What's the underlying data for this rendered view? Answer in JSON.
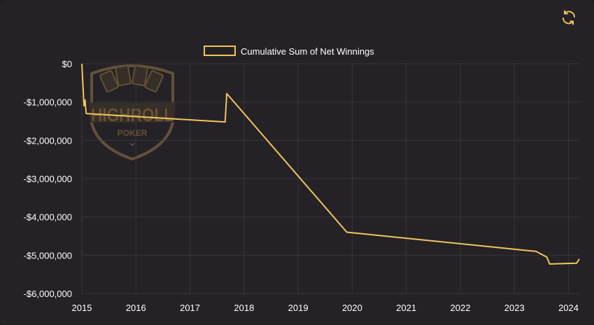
{
  "icons": {
    "refresh": "refresh-icon"
  },
  "colors": {
    "background": "#242226",
    "line": "#f2c55c",
    "grid": "#37353a",
    "text": "#ffffff",
    "logo": "#6e5a3c"
  },
  "logo": {
    "top_text": "HIGHROLL",
    "bottom_text": "POKER"
  },
  "chart_data": {
    "type": "line",
    "legend": {
      "position": "top-center",
      "entries": [
        "Cumulative Sum of Net Winnings"
      ]
    },
    "series": [
      {
        "name": "Cumulative Sum of Net Winnings",
        "points": [
          [
            2015.0,
            0
          ],
          [
            2015.04,
            -1100000
          ],
          [
            2015.06,
            -950000
          ],
          [
            2015.08,
            -1300000
          ],
          [
            2017.65,
            -1520000
          ],
          [
            2017.68,
            -780000
          ],
          [
            2019.9,
            -4400000
          ],
          [
            2023.4,
            -4900000
          ],
          [
            2023.6,
            -5050000
          ],
          [
            2023.65,
            -5230000
          ],
          [
            2024.15,
            -5210000
          ],
          [
            2024.2,
            -5100000
          ]
        ]
      }
    ],
    "x_ticks": [
      {
        "v": 2015,
        "label": "2015"
      },
      {
        "v": 2016,
        "label": "2016"
      },
      {
        "v": 2017,
        "label": "2017"
      },
      {
        "v": 2018,
        "label": "2018"
      },
      {
        "v": 2019,
        "label": "2019"
      },
      {
        "v": 2020,
        "label": "2020"
      },
      {
        "v": 2021,
        "label": "2021"
      },
      {
        "v": 2022,
        "label": "2022"
      },
      {
        "v": 2023,
        "label": "2023"
      },
      {
        "v": 2024,
        "label": "2024"
      }
    ],
    "y_ticks": [
      {
        "v": 0,
        "label": "$0"
      },
      {
        "v": -1000000,
        "label": "-$1,000,000"
      },
      {
        "v": -2000000,
        "label": "-$2,000,000"
      },
      {
        "v": -3000000,
        "label": "-$3,000,000"
      },
      {
        "v": -4000000,
        "label": "-$4,000,000"
      },
      {
        "v": -5000000,
        "label": "-$5,000,000"
      },
      {
        "v": -6000000,
        "label": "-$6,000,000"
      }
    ],
    "xlim": [
      2015,
      2024.2
    ],
    "ylim": [
      -6000000,
      0
    ],
    "grid": true
  }
}
